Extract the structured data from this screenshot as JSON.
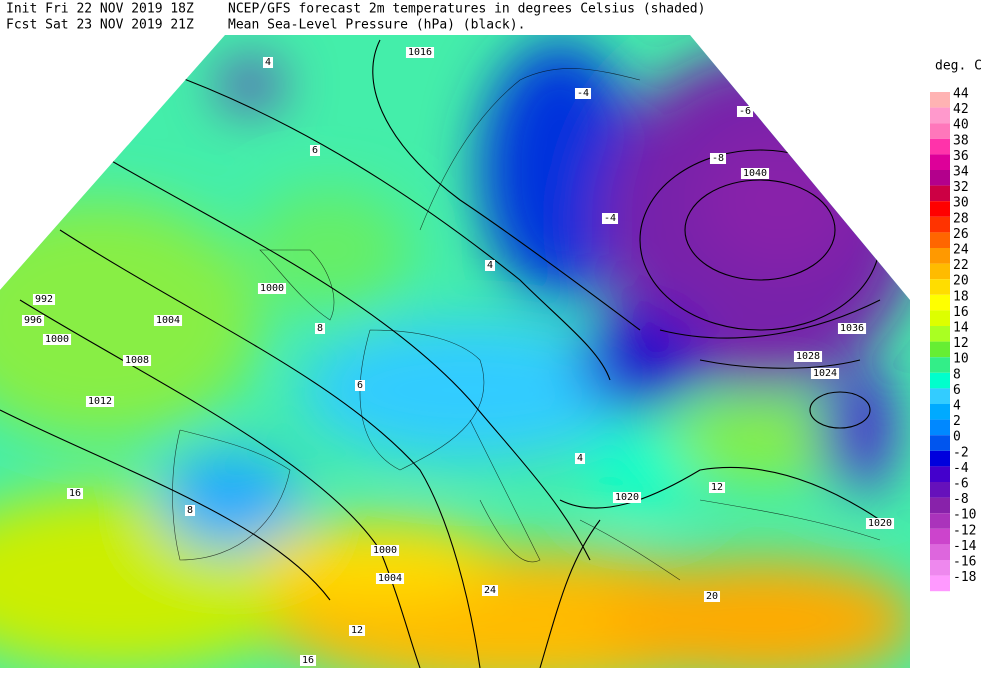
{
  "header": {
    "init": "Init  Fri 22 NOV 2019 18Z",
    "forecast": "Fcst Sat 23 NOV 2019 21Z",
    "title_line1": "NCEP/GFS forecast 2m temperatures in degrees Celsius (shaded)",
    "title_line2": "Mean Sea-Level Pressure (hPa) (black)."
  },
  "legend": {
    "unit": "deg. C",
    "levels": [
      {
        "label": "44",
        "color": "#ffb3b3"
      },
      {
        "label": "42",
        "color": "#ff99cc"
      },
      {
        "label": "40",
        "color": "#ff77bb"
      },
      {
        "label": "38",
        "color": "#ff33aa"
      },
      {
        "label": "36",
        "color": "#dd0099"
      },
      {
        "label": "34",
        "color": "#b3008c"
      },
      {
        "label": "32",
        "color": "#cc0044"
      },
      {
        "label": "30",
        "color": "#ff0000"
      },
      {
        "label": "28",
        "color": "#ff3300"
      },
      {
        "label": "26",
        "color": "#ff6600"
      },
      {
        "label": "24",
        "color": "#ff9900"
      },
      {
        "label": "22",
        "color": "#ffbb00"
      },
      {
        "label": "20",
        "color": "#ffdd00"
      },
      {
        "label": "18",
        "color": "#ffff00"
      },
      {
        "label": "16",
        "color": "#ddff00"
      },
      {
        "label": "14",
        "color": "#aaff22"
      },
      {
        "label": "12",
        "color": "#66ee33"
      },
      {
        "label": "10",
        "color": "#33ee88"
      },
      {
        "label": "8",
        "color": "#00ffcc"
      },
      {
        "label": "6",
        "color": "#33ccff"
      },
      {
        "label": "4",
        "color": "#00aaff"
      },
      {
        "label": "2",
        "color": "#0088ff"
      },
      {
        "label": "0",
        "color": "#0055ee"
      },
      {
        "label": "-2",
        "color": "#0000dd"
      },
      {
        "label": "-4",
        "color": "#4400cc"
      },
      {
        "label": "-6",
        "color": "#6611bb"
      },
      {
        "label": "-8",
        "color": "#8822aa"
      },
      {
        "label": "-10",
        "color": "#aa33bb"
      },
      {
        "label": "-12",
        "color": "#cc44cc"
      },
      {
        "label": "-14",
        "color": "#dd66dd"
      },
      {
        "label": "-16",
        "color": "#ee88ee"
      },
      {
        "label": "-18",
        "color": "#ff99ff"
      }
    ]
  },
  "map": {
    "isobar_labels": [
      "1016",
      "1040",
      "1036",
      "1028",
      "1024",
      "992",
      "996",
      "1000",
      "1004",
      "1008",
      "1012",
      "1000",
      "1000",
      "1004",
      "1020",
      "1020"
    ],
    "temperature_labels": [
      "4",
      "-4",
      "-6",
      "-8",
      "-4",
      "6",
      "4",
      "8",
      "6",
      "4",
      "12",
      "16",
      "20",
      "24",
      "16",
      "12",
      "8"
    ]
  }
}
